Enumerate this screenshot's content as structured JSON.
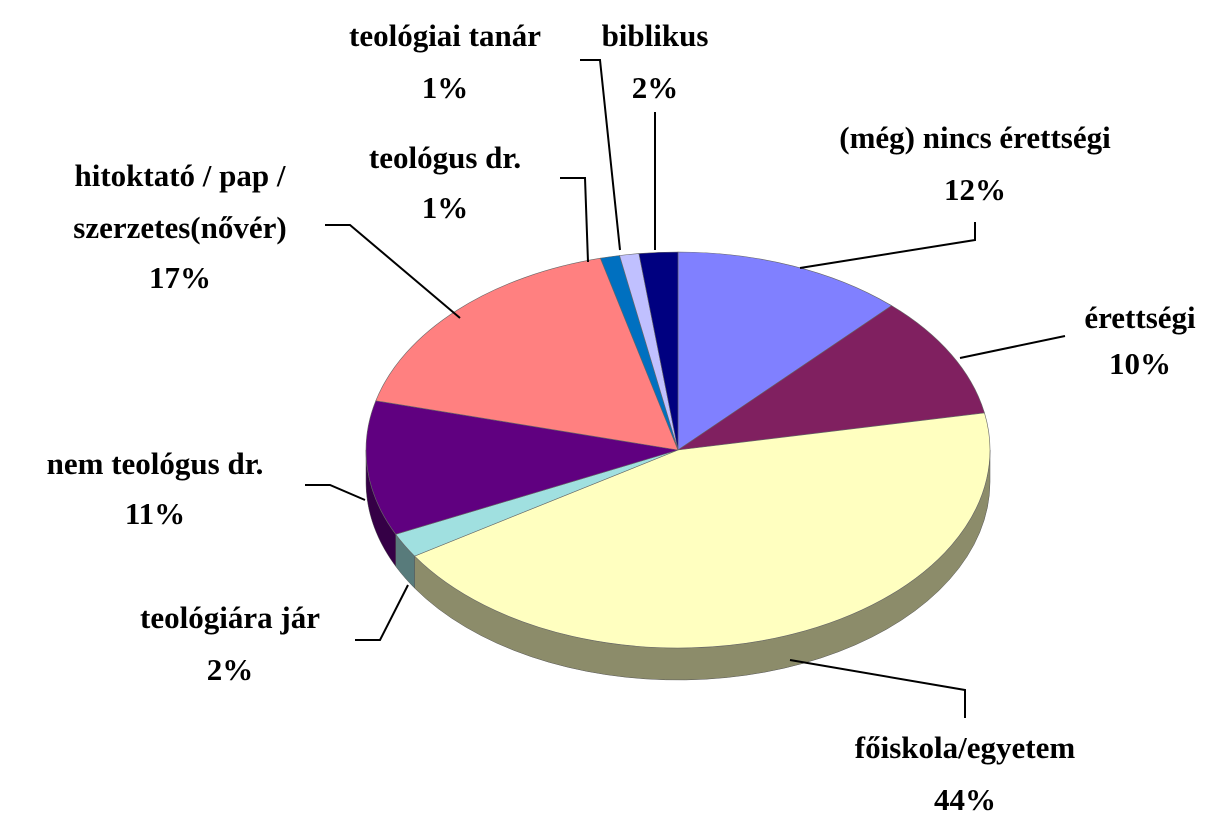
{
  "chart_data": {
    "type": "pie",
    "categories": [
      "(még) nincs érettségi",
      "érettségi",
      "főiskola/egyetem",
      "teológiára jár",
      "nem teológus dr.",
      "hitoktató / pap / szerzetes(nővér)",
      "teológus dr.",
      "teológiai tanár",
      "biblikus"
    ],
    "values": [
      12,
      10,
      44,
      2,
      11,
      17,
      1,
      1,
      2
    ],
    "value_labels": [
      "12%",
      "10%",
      "44%",
      "2%",
      "11%",
      "17%",
      "1%",
      "1%",
      "2%"
    ],
    "colors": [
      "#8080ff",
      "#802060",
      "#ffffc0",
      "#a0e0e0",
      "#600080",
      "#ff8080",
      "#0070c0",
      "#c0c0ff",
      "#000080"
    ]
  }
}
